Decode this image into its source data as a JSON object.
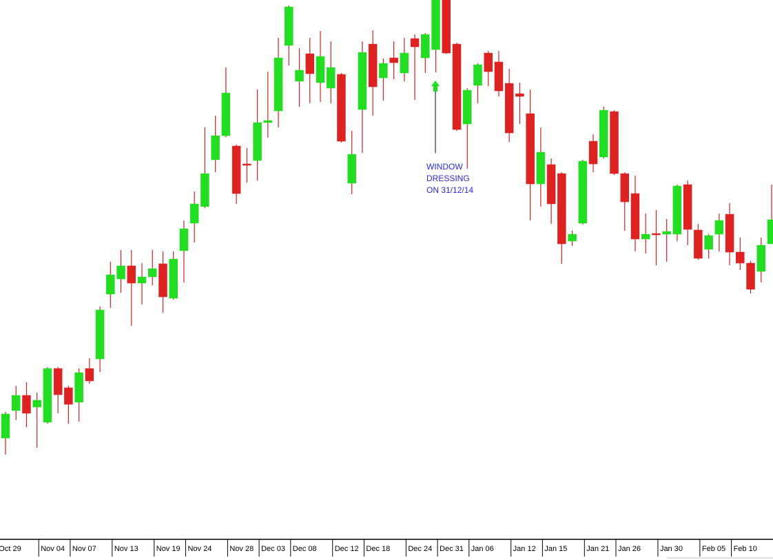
{
  "chart_data": {
    "type": "candlestick",
    "categories": [
      "Oct 29",
      null,
      null,
      "Nov 04",
      null,
      null,
      "Nov 07",
      null,
      null,
      null,
      "Nov 13",
      null,
      null,
      null,
      "Nov 19",
      null,
      null,
      "Nov 24",
      null,
      null,
      null,
      "Nov 28",
      null,
      null,
      "Dec 03",
      null,
      null,
      "Dec 08",
      null,
      null,
      null,
      "Dec 12",
      null,
      null,
      "Dec 18",
      null,
      null,
      null,
      "Dec 24",
      null,
      null,
      "Dec 31",
      null,
      null,
      "Jan 06",
      null,
      null,
      null,
      "Jan 12",
      null,
      null,
      "Jan 15",
      null,
      null,
      null,
      "Jan 21",
      null,
      null,
      "Jan 26",
      null,
      null,
      null,
      "Jan 30",
      null,
      null,
      null,
      "Feb 05",
      null,
      null,
      "Feb 10",
      null,
      null,
      null,
      null
    ],
    "open": [
      147,
      187,
      209,
      192,
      170,
      248,
      220,
      199,
      248,
      262,
      356,
      378,
      397,
      372,
      381,
      400,
      350,
      419,
      459,
      483,
      551,
      586,
      571,
      545,
      550,
      605,
      622,
      717,
      665,
      705,
      663,
      655,
      675,
      517,
      624,
      719,
      670,
      699,
      677,
      727,
      699,
      711,
      783,
      719,
      603,
      659,
      706,
      693,
      662,
      647,
      618,
      516,
      544,
      531,
      433,
      459,
      578,
      555,
      621,
      531,
      502,
      436,
      444,
      443,
      443,
      515,
      449,
      421,
      443,
      472,
      417,
      401,
      389,
      429
    ],
    "high": [
      185,
      223,
      228,
      213,
      250,
      250,
      223,
      248,
      263,
      338,
      403,
      420,
      420,
      401,
      420,
      418,
      418,
      463,
      505,
      598,
      615,
      685,
      573,
      568,
      653,
      679,
      728,
      775,
      713,
      728,
      738,
      723,
      677,
      593,
      723,
      739,
      698,
      723,
      728,
      733,
      735,
      783,
      783,
      721,
      655,
      691,
      709,
      709,
      683,
      663,
      653,
      598,
      553,
      533,
      448,
      551,
      588,
      628,
      623,
      533,
      528,
      473,
      478,
      465,
      515,
      521,
      458,
      443,
      473,
      488,
      438,
      404,
      438,
      515
    ],
    "low": [
      123,
      173,
      163,
      133,
      168,
      183,
      168,
      171,
      226,
      243,
      336,
      358,
      310,
      341,
      369,
      329,
      348,
      373,
      431,
      481,
      533,
      584,
      487,
      518,
      521,
      583,
      598,
      688,
      628,
      633,
      635,
      633,
      576,
      501,
      561,
      615,
      637,
      668,
      665,
      638,
      677,
      678,
      705,
      593,
      538,
      633,
      658,
      643,
      577,
      603,
      463,
      483,
      458,
      400,
      426,
      457,
      533,
      553,
      529,
      448,
      418,
      415,
      398,
      403,
      433,
      427,
      406,
      408,
      418,
      398,
      391,
      357,
      373,
      429
    ],
    "close": [
      182,
      209,
      183,
      202,
      248,
      210,
      196,
      242,
      230,
      333,
      384,
      397,
      372,
      381,
      393,
      352,
      407,
      451,
      487,
      531,
      586,
      648,
      502,
      543,
      605,
      608,
      699,
      773,
      681,
      676,
      701,
      685,
      578,
      559,
      707,
      657,
      691,
      692,
      706,
      715,
      733,
      783,
      706,
      595,
      652,
      689,
      679,
      651,
      590,
      643,
      516,
      562,
      487,
      429,
      443,
      549,
      545,
      623,
      531,
      490,
      436,
      443,
      442,
      447,
      513,
      450,
      408,
      441,
      463,
      417,
      401,
      363,
      427,
      464
    ],
    "up_color": "#22dd22",
    "down_color": "#dd2222",
    "wick_color": "#cc2222",
    "ylim": [
      0,
      783
    ],
    "annotation": {
      "lines": [
        "WINDOW",
        "DRESSING",
        "ON 31/12/14"
      ]
    }
  }
}
